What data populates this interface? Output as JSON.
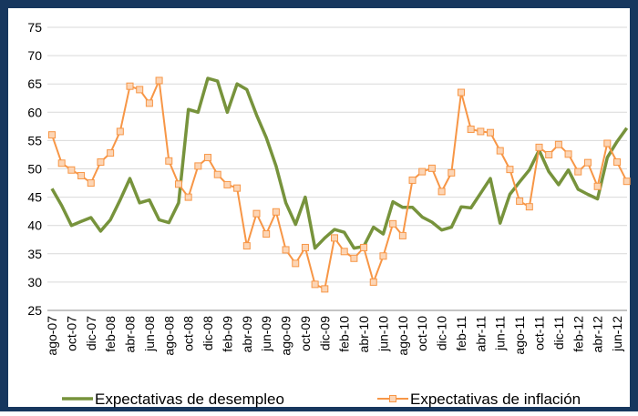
{
  "chart_data": {
    "type": "line",
    "categories": [
      "ago-07",
      null,
      "oct-07",
      null,
      "dic-07",
      null,
      "feb-08",
      null,
      "abr-08",
      null,
      "jun-08",
      null,
      "ago-08",
      null,
      "oct-08",
      null,
      "dic-08",
      null,
      "feb-09",
      null,
      "abr-09",
      null,
      "jun-09",
      null,
      "ago-09",
      null,
      "oct-09",
      null,
      "dic-09",
      null,
      "feb-10",
      null,
      "abr-10",
      null,
      "jun-10",
      null,
      "ago-10",
      null,
      "oct-10",
      null,
      "dic-10",
      null,
      "feb-11",
      null,
      "abr-11",
      null,
      "jun-11",
      null,
      "ago-11",
      null,
      "oct-11",
      null,
      "dic-11",
      null,
      "feb-12",
      null,
      "abr-12",
      null,
      "jun-12",
      null
    ],
    "series": [
      {
        "name": "Expectativas de desempleo",
        "color": "#77933c",
        "marker": false,
        "values": [
          46.5,
          43.5,
          40.0,
          40.7,
          41.4,
          39.0,
          41.0,
          44.5,
          48.3,
          44.0,
          44.5,
          41.0,
          40.5,
          44.0,
          60.5,
          60.0,
          66.0,
          65.5,
          60.0,
          65.0,
          64.0,
          59.5,
          55.5,
          50.5,
          44.0,
          40.2,
          45.0,
          36.0,
          37.8,
          39.3,
          38.8,
          36.0,
          36.3,
          39.7,
          38.5,
          44.2,
          43.2,
          43.2,
          41.5,
          40.6,
          39.2,
          39.7,
          43.3,
          43.1,
          45.7,
          48.3,
          40.4,
          45.5,
          47.7,
          49.8,
          53.3,
          49.5,
          47.2,
          49.8,
          46.4,
          45.5,
          44.7,
          52.0,
          54.8,
          57.2
        ]
      },
      {
        "name": "Expectativas de inflación",
        "color": "#f79646",
        "marker": true,
        "values": [
          56.0,
          51.0,
          49.8,
          48.8,
          47.5,
          51.2,
          52.8,
          56.6,
          64.6,
          64.0,
          61.6,
          65.6,
          51.4,
          47.3,
          45.0,
          50.5,
          52.0,
          49.0,
          47.2,
          46.6,
          36.4,
          42.1,
          38.5,
          42.4,
          35.7,
          33.3,
          36.1,
          29.6,
          28.8,
          37.8,
          35.4,
          34.2,
          36.1,
          30.0,
          34.6,
          40.3,
          38.2,
          48.0,
          49.5,
          50.1,
          46.0,
          49.3,
          63.5,
          57.0,
          56.6,
          56.4,
          53.2,
          49.9,
          44.3,
          43.3,
          53.8,
          52.5,
          54.3,
          52.6,
          49.5,
          51.1,
          46.9,
          54.5,
          51.2,
          47.8
        ]
      }
    ],
    "ylim": [
      25,
      75
    ],
    "yticks": [
      25,
      30,
      35,
      40,
      45,
      50,
      55,
      60,
      65,
      70,
      75
    ],
    "grid": true,
    "legend": "bottom"
  }
}
